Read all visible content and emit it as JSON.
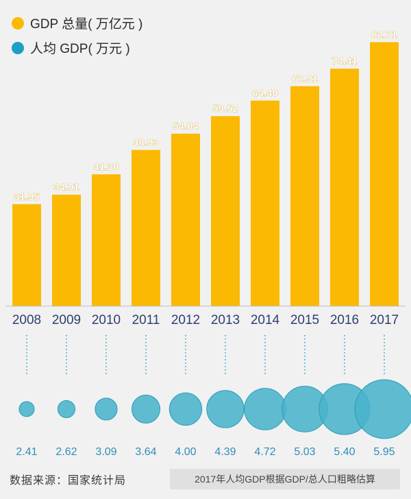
{
  "chart_data": {
    "type": "bar",
    "categories": [
      "2008",
      "2009",
      "2010",
      "2011",
      "2012",
      "2013",
      "2014",
      "2015",
      "2016",
      "2017"
    ],
    "series": [
      {
        "name": "GDP 总量( 万亿元 )",
        "values": [
          31.95,
          34.91,
          41.3,
          48.93,
          54.04,
          59.52,
          64.4,
          68.91,
          74.41,
          82.71
        ],
        "labels": [
          "31.95",
          "34.91",
          "41.30",
          "48.93",
          "54.04",
          "59.52",
          "64.40",
          "68.91",
          "74.41",
          "82.71"
        ],
        "color": "#fbb904"
      },
      {
        "name": "人均 GDP( 万元 )",
        "values": [
          2.41,
          2.62,
          3.09,
          3.64,
          4.0,
          4.39,
          4.72,
          5.03,
          5.4,
          5.95
        ],
        "labels": [
          "2.41",
          "2.62",
          "3.09",
          "3.64",
          "4.00",
          "4.39",
          "4.72",
          "5.03",
          "5.40",
          "5.95"
        ],
        "color": "#4ab3cb"
      }
    ],
    "ylim": [
      0,
      85
    ],
    "grid": false
  },
  "legend": {
    "gdp_total": "GDP 总量( 万亿元 )",
    "gdp_per_capita": "人均 GDP( 万元 )"
  },
  "footer": {
    "source": "数据来源：国家统计局",
    "note": "2017年人均GDP根据GDP/总人口粗略估算"
  }
}
